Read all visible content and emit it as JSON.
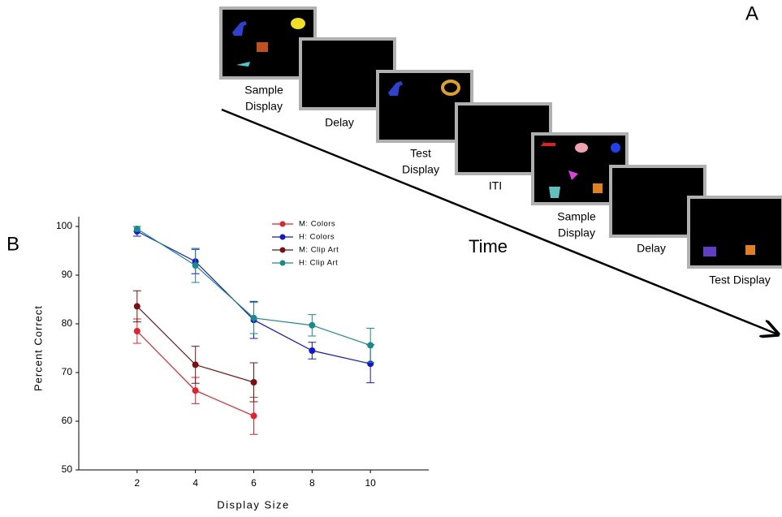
{
  "panel_a": {
    "label": "A",
    "time_label": "Time",
    "screens": [
      {
        "caption": [
          "Sample",
          "Display"
        ]
      },
      {
        "caption": [
          "Delay"
        ]
      },
      {
        "caption": [
          "Test",
          "Display"
        ]
      },
      {
        "caption": [
          "ITI"
        ]
      },
      {
        "caption": [
          "Sample",
          "Display"
        ]
      },
      {
        "caption": [
          "Delay"
        ]
      },
      {
        "caption": [
          "Test Display"
        ]
      }
    ]
  },
  "panel_b": {
    "label": "B"
  },
  "chart_data": {
    "type": "line",
    "x_label": "Display Size",
    "y_label": "Percent Correct",
    "x": [
      2,
      4,
      6,
      8,
      10
    ],
    "xlim": [
      0,
      12
    ],
    "xticks": [
      2,
      4,
      6,
      8,
      10
    ],
    "ylim": [
      50,
      100
    ],
    "yticks": [
      50,
      60,
      70,
      80,
      90,
      100
    ],
    "series": [
      {
        "name": "M: Colors",
        "color": "#e8202a",
        "values": [
          78.5,
          66.3,
          61.1,
          null,
          null
        ],
        "errors": [
          2.5,
          2.7,
          3.8,
          null,
          null
        ]
      },
      {
        "name": "H: Colors",
        "color": "#1515d8",
        "values": [
          99,
          92.8,
          80.8,
          74.5,
          71.8
        ],
        "errors": [
          1,
          2.5,
          3.8,
          1.7,
          3.9
        ]
      },
      {
        "name": "M: Clip Art",
        "color": "#7a1010",
        "values": [
          83.6,
          71.6,
          68,
          null,
          null
        ],
        "errors": [
          3.2,
          3.8,
          4,
          null,
          null
        ]
      },
      {
        "name": "H: Clip Art",
        "color": "#1a8a8a",
        "values": [
          99.5,
          92,
          81.2,
          79.7,
          75.6
        ],
        "errors": [
          0.5,
          3.5,
          3.2,
          2.2,
          3.5
        ]
      }
    ]
  }
}
